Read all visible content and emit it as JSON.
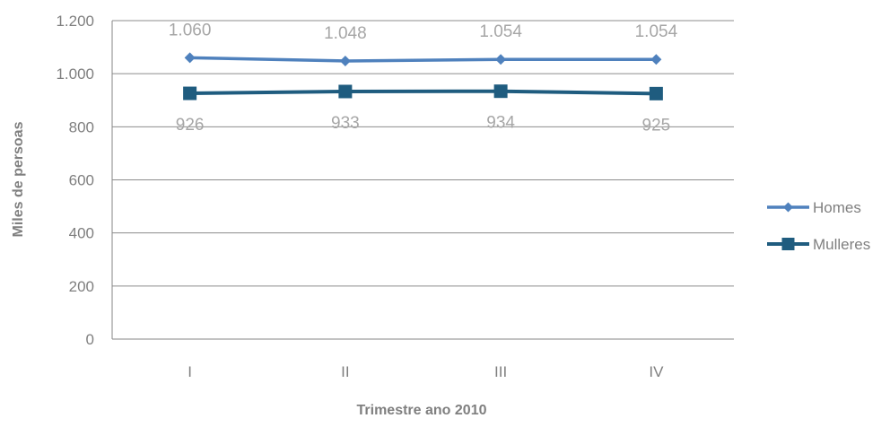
{
  "chart_data": {
    "type": "line",
    "title": "",
    "xlabel": "Trimestre ano 2010",
    "ylabel": "Miles de persoas",
    "categories": [
      "I",
      "II",
      "III",
      "IV"
    ],
    "ylim": [
      0,
      1200
    ],
    "yticks": [
      0,
      200,
      400,
      600,
      800,
      1000,
      1200
    ],
    "ytick_labels": [
      "0",
      "200",
      "400",
      "600",
      "800",
      "1.000",
      "1.200"
    ],
    "grid": true,
    "legend_position": "right",
    "series": [
      {
        "name": "Homes",
        "values": [
          1060,
          1048,
          1054,
          1054
        ],
        "labels": [
          "1.060",
          "1.048",
          "1.054",
          "1.054"
        ],
        "marker": "diamond",
        "color": "#4f81bd"
      },
      {
        "name": "Mulleres",
        "values": [
          926,
          933,
          934,
          925
        ],
        "labels": [
          "926",
          "933",
          "934",
          "925"
        ],
        "marker": "square",
        "color": "#1f5c7f"
      }
    ]
  }
}
